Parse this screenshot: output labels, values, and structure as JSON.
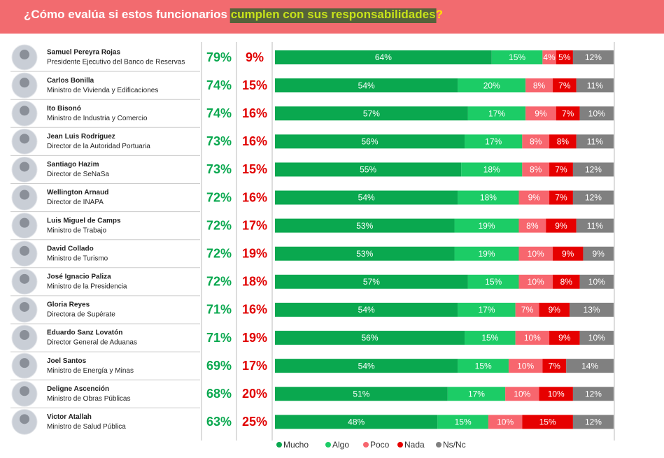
{
  "chart_data": {
    "type": "stacked_bar_h",
    "title_prefix": "¿Cómo evalúa si estos funcionarios ",
    "title_highlight": "cumplen con sus responsabilidades",
    "title_suffix": "?",
    "xlim": [
      0,
      100
    ],
    "categories": [
      "Samuel Pereyra Rojas",
      "Carlos Bonilla",
      "Ito Bisonó",
      "Jean Luis Rodríguez",
      "Santiago Hazim",
      "Wellington Arnaud",
      "Luis Miguel de Camps",
      "David Collado",
      "José Ignacio Paliza",
      "Gloria Reyes",
      "Eduardo Sanz Lovatón",
      "Joel Santos",
      "Deligne Ascención",
      "Victor Atallah"
    ],
    "roles": [
      "Presidente Ejecutivo del Banco de Reservas",
      "Ministro de Vivienda y Edificaciones",
      "Ministro de Industria y Comercio",
      "Director de la Autoridad Portuaria",
      "Director de SeNaSa",
      "Director de INAPA",
      "Ministro de Trabajo",
      "Ministro de Turismo",
      "Ministro de la Presidencia",
      "Directora de Supérate",
      "Director General de Aduanas",
      "Ministro de Energía y Minas",
      "Ministro de Obras Públicas",
      "Ministro de Salud Pública"
    ],
    "positive_color": "#0aa84f",
    "positive_values": [
      79,
      74,
      74,
      73,
      73,
      72,
      72,
      72,
      72,
      71,
      71,
      69,
      68,
      63
    ],
    "positive_labels": [
      "79%",
      "74%",
      "74%",
      "73%",
      "73%",
      "72%",
      "72%",
      "72%",
      "72%",
      "71%",
      "71%",
      "69%",
      "68%",
      "63%"
    ],
    "negative_color": "#e00000",
    "negative_values": [
      9,
      15,
      16,
      16,
      15,
      16,
      17,
      19,
      18,
      16,
      19,
      17,
      20,
      25
    ],
    "negative_labels": [
      "9%",
      "15%",
      "16%",
      "16%",
      "15%",
      "16%",
      "17%",
      "19%",
      "18%",
      "16%",
      "19%",
      "17%",
      "20%",
      "25%"
    ],
    "series": [
      {
        "name": "Mucho",
        "color": "#0aa84f",
        "values": [
          64,
          54,
          57,
          56,
          55,
          54,
          53,
          53,
          57,
          54,
          56,
          54,
          51,
          48
        ],
        "value_labels": [
          "64%",
          "54%",
          "57%",
          "56%",
          "55%",
          "54%",
          "53%",
          "53%",
          "57%",
          "54%",
          "56%",
          "54%",
          "51%",
          "48%"
        ]
      },
      {
        "name": "Algo",
        "color": "#1ccc66",
        "values": [
          15,
          20,
          17,
          17,
          18,
          18,
          19,
          19,
          15,
          17,
          15,
          15,
          17,
          15
        ],
        "value_labels": [
          "15%",
          "20%",
          "17%",
          "17%",
          "18%",
          "18%",
          "19%",
          "19%",
          "15%",
          "17%",
          "15%",
          "15%",
          "17%",
          "15%"
        ]
      },
      {
        "name": "Poco",
        "color": "#f7666e",
        "values": [
          4,
          8,
          9,
          8,
          8,
          9,
          8,
          10,
          10,
          7,
          10,
          10,
          10,
          10
        ],
        "value_labels": [
          "4%",
          "8%",
          "9%",
          "8%",
          "8%",
          "9%",
          "8%",
          "10%",
          "10%",
          "7%",
          "10%",
          "10%",
          "10%",
          "10%"
        ]
      },
      {
        "name": "Nada",
        "color": "#e60000",
        "values": [
          5,
          7,
          7,
          8,
          7,
          7,
          9,
          9,
          8,
          9,
          9,
          7,
          10,
          15
        ],
        "value_labels": [
          "5%",
          "7%",
          "7%",
          "8%",
          "7%",
          "7%",
          "9%",
          "9%",
          "8%",
          "9%",
          "9%",
          "7%",
          "10%",
          "15%"
        ]
      },
      {
        "name": "Ns/Nc",
        "color": "#808080",
        "values": [
          12,
          11,
          10,
          11,
          12,
          12,
          11,
          9,
          10,
          13,
          10,
          14,
          12,
          12
        ],
        "value_labels": [
          "12%",
          "11%",
          "10%",
          "11%",
          "12%",
          "12%",
          "11%",
          "9%",
          "10%",
          "13%",
          "10%",
          "14%",
          "12%",
          "12%"
        ]
      }
    ]
  }
}
